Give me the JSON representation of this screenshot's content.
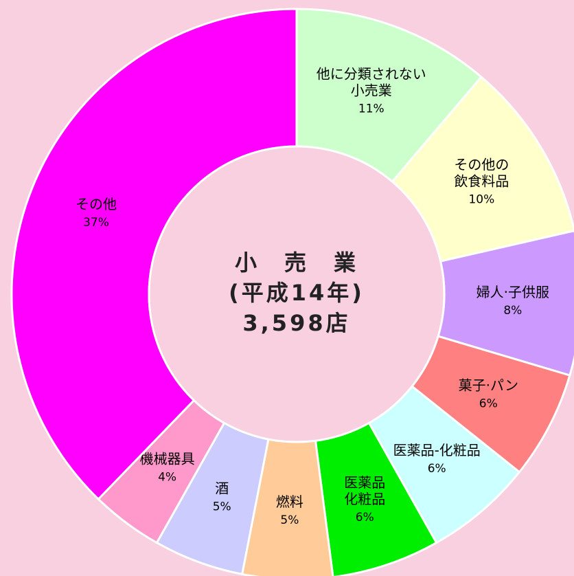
{
  "chart_data": {
    "type": "donut",
    "categories": [
      "他に分類されない\n小売業",
      "その他の\n飲食料品",
      "婦人·子供服",
      "菓子·パン",
      "医薬品-化粧品",
      "医薬品\n化粧品",
      "燃料",
      "酒",
      "機械器具",
      "その他"
    ],
    "values": [
      11,
      10,
      8,
      6,
      6,
      6,
      5,
      5,
      4,
      37
    ],
    "value_labels": [
      "11%",
      "10%",
      "8%",
      "6%",
      "6%",
      "6%",
      "5%",
      "5%",
      "4%",
      "37%"
    ],
    "colors": [
      "#ccffcc",
      "#ffffcc",
      "#cc99ff",
      "#ff8080",
      "#ccffff",
      "#00ee00",
      "#ffcc99",
      "#ccccff",
      "#ff99cc",
      "#ff00ff"
    ],
    "center_text": [
      "小　売　業",
      "(平成14年)",
      "3,598店"
    ]
  }
}
